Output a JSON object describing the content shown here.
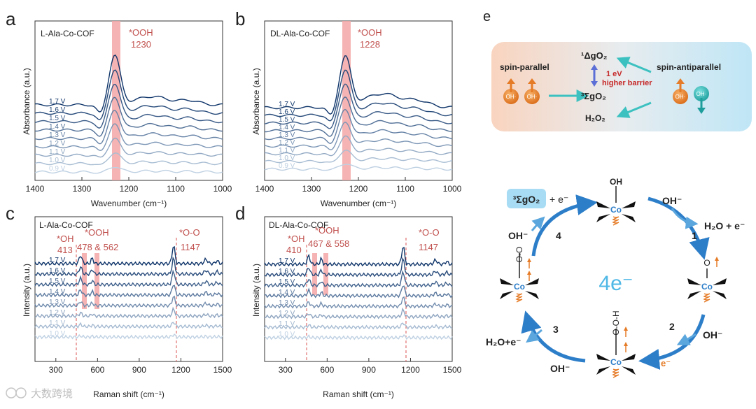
{
  "watermark": "大数跨境",
  "chart_data": [
    {
      "panel": "a",
      "type": "line",
      "title": "L-Ala-Co-COF",
      "xlabel": "Wavenumber (cm⁻¹)",
      "ylabel": "Absorbance (a.u.)",
      "xlim": [
        1400,
        1000
      ],
      "xticks": [
        "1400",
        "1300",
        "1200",
        "1100",
        "1000"
      ],
      "highlight": {
        "label": "*OOH",
        "value": "1230",
        "center": 1230,
        "width": 14
      },
      "series_labels": [
        "1.7 V",
        "1.6 V",
        "1.5 V",
        "1.4 V",
        "1.3 V",
        "1.2 V",
        "1.1 V",
        "1.0 V",
        "0.9 V"
      ]
    },
    {
      "panel": "b",
      "type": "line",
      "title": "DL-Ala-Co-COF",
      "xlabel": "Wavenumber (cm⁻¹)",
      "ylabel": "Absorbance (a.u.)",
      "xlim": [
        1400,
        1000
      ],
      "xticks": [
        "1400",
        "1300",
        "1200",
        "1100",
        "1000"
      ],
      "highlight": {
        "label": "*OOH",
        "value": "1228",
        "center": 1228,
        "width": 14
      },
      "series_labels": [
        "1.7 V",
        "1.6 V",
        "1.5 V",
        "1.4 V",
        "1.3 V",
        "1.2 V",
        "1.1 V",
        "1.0 V",
        "0.9 V"
      ]
    },
    {
      "panel": "c",
      "type": "line",
      "title": "L-Ala-Co-COF",
      "xlabel": "Raman shift (cm⁻¹)",
      "ylabel": "Intensity (a.u.)",
      "xlim": [
        150,
        1500
      ],
      "xticks": [
        "300",
        "600",
        "900",
        "1200",
        "1500"
      ],
      "annotations": [
        {
          "label": "*OH",
          "value": "413",
          "x": 413
        },
        {
          "label": "*OOH",
          "value": "478 & 562",
          "x": [
            478,
            562
          ]
        },
        {
          "label": "*O-O",
          "value": "1147",
          "x": 1147
        }
      ],
      "series_labels": [
        "1.7 V",
        "1.6 V",
        "1.5 V",
        "1.4 V",
        "1.3 V",
        "1.2 V",
        "1.1 V",
        "1.0 V"
      ]
    },
    {
      "panel": "d",
      "type": "line",
      "title": "DL-Ala-Co-COF",
      "xlabel": "Raman shift (cm⁻¹)",
      "ylabel": "Intensity (a.u.)",
      "xlim": [
        150,
        1500
      ],
      "xticks": [
        "300",
        "600",
        "900",
        "1200",
        "1500"
      ],
      "annotations": [
        {
          "label": "*OH",
          "value": "410",
          "x": 410
        },
        {
          "label": "*OOH",
          "value": "467 & 558",
          "x": [
            467,
            558
          ]
        },
        {
          "label": "*O-O",
          "value": "1147",
          "x": 1147
        }
      ],
      "series_labels": [
        "1.7 V",
        "1.6 V",
        "1.5 V",
        "1.4 V",
        "1.3 V",
        "1.2 V",
        "1.1 V",
        "1.0 V"
      ]
    }
  ],
  "panel_e": {
    "label": "e",
    "spin_parallel": "spin-parallel",
    "spin_antiparallel": "spin-antiparallel",
    "singlet": "¹ΔgO₂",
    "triplet": "³ΣgO₂",
    "h2o2": "H₂O₂",
    "barrier_1": "1 eV",
    "barrier_2": "higher barrier",
    "oh_badge": "OH·",
    "oh_badge_anti": "OH·"
  },
  "cycle": {
    "product_box": "³ΣgO₂",
    "plus_e": "+ e⁻",
    "center": "4e⁻",
    "co": "Co",
    "steps": [
      "1",
      "2",
      "3",
      "4"
    ],
    "oh_top": "OH⁻",
    "h2o_e_right": "H₂O + e⁻",
    "oh_right_bottom": "OH⁻",
    "e_bottom": "e⁻",
    "oh_bottom": "OH⁻",
    "h2o_e_left": "H₂O+e⁻",
    "oh_left_top": "OH⁻",
    "top_ligand": "OH",
    "right_ligand": "O",
    "bottom_ligand": "O-O-H",
    "left_ligand": "O-O"
  },
  "colors": {
    "accent_red": "#c0504d",
    "highlight": "#f4a6a6",
    "arrow_blue": "#2d7ec9",
    "teal": "#3cc1c0",
    "orange": "#e57b26"
  }
}
